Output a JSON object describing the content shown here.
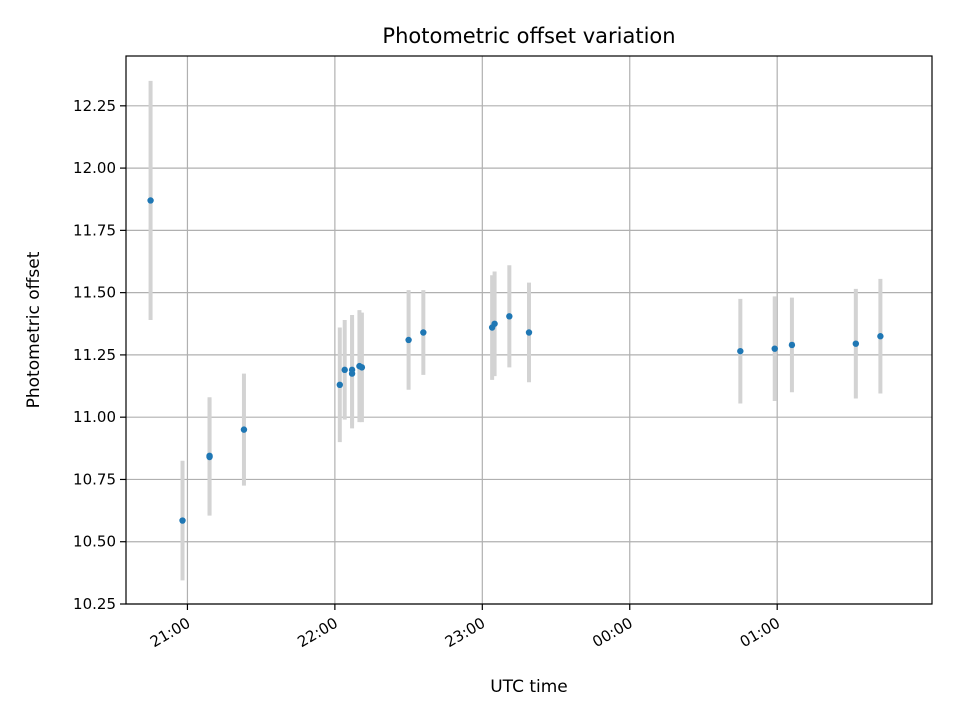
{
  "chart_data": {
    "type": "scatter",
    "title": "Photometric offset variation",
    "xlabel": "UTC time",
    "ylabel": "Photometric offset",
    "x_unit": "UTC time (hours relative to midnight of second day)",
    "xlim": [
      "20:35",
      "02:03"
    ],
    "ylim": [
      10.25,
      12.45
    ],
    "x_ticks": [
      "21:00",
      "22:00",
      "23:00",
      "00:00",
      "01:00"
    ],
    "y_ticks": [
      "10.25",
      "10.50",
      "10.75",
      "11.00",
      "11.25",
      "11.50",
      "11.75",
      "12.00",
      "12.25"
    ],
    "grid": true,
    "marker_color": "#1f77b4",
    "errorbar_color": "#d3d3d3",
    "points": [
      {
        "time": "20:45",
        "y": 11.87,
        "err": 0.48
      },
      {
        "time": "20:58",
        "y": 10.585,
        "err": 0.24
      },
      {
        "time": "21:09",
        "y": 10.845,
        "err": 0.235
      },
      {
        "time": "21:09",
        "y": 10.84,
        "err": 0.235
      },
      {
        "time": "21:23",
        "y": 10.95,
        "err": 0.225
      },
      {
        "time": "22:02",
        "y": 11.13,
        "err": 0.23
      },
      {
        "time": "22:04",
        "y": 11.19,
        "err": 0.2
      },
      {
        "time": "22:07",
        "y": 11.19,
        "err": 0.22
      },
      {
        "time": "22:07",
        "y": 11.175,
        "err": 0.22
      },
      {
        "time": "22:10",
        "y": 11.205,
        "err": 0.225
      },
      {
        "time": "22:11",
        "y": 11.2,
        "err": 0.22
      },
      {
        "time": "22:30",
        "y": 11.31,
        "err": 0.2
      },
      {
        "time": "22:36",
        "y": 11.34,
        "err": 0.17
      },
      {
        "time": "23:04",
        "y": 11.36,
        "err": 0.21
      },
      {
        "time": "23:05",
        "y": 11.375,
        "err": 0.21
      },
      {
        "time": "23:11",
        "y": 11.405,
        "err": 0.205
      },
      {
        "time": "23:19",
        "y": 11.34,
        "err": 0.2
      },
      {
        "time": "00:45",
        "y": 11.265,
        "err": 0.21
      },
      {
        "time": "00:59",
        "y": 11.275,
        "err": 0.21
      },
      {
        "time": "01:06",
        "y": 11.29,
        "err": 0.19
      },
      {
        "time": "01:32",
        "y": 11.295,
        "err": 0.22
      },
      {
        "time": "01:42",
        "y": 11.325,
        "err": 0.23
      }
    ]
  }
}
